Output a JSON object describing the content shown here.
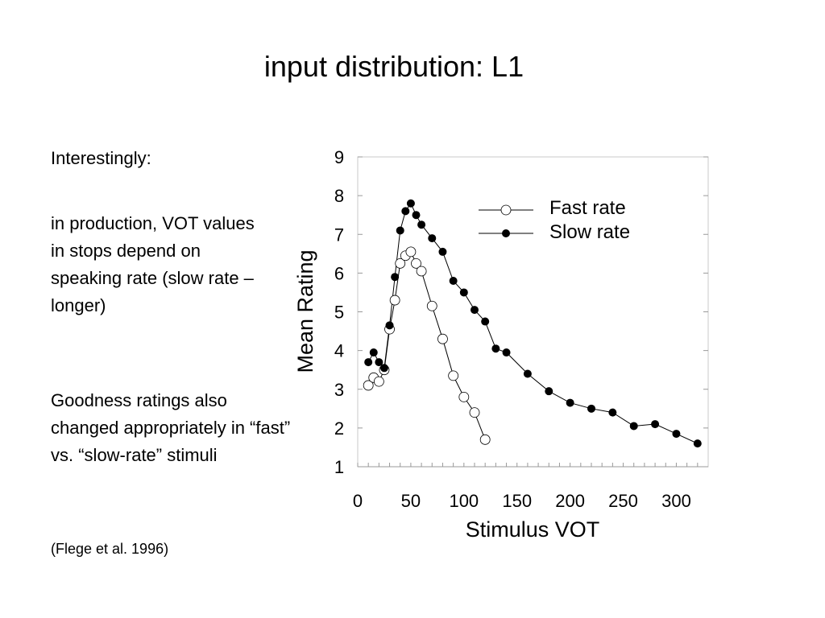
{
  "slide": {
    "title": "input distribution: L1",
    "bullets": [
      "Interestingly:",
      "in production, VOT values in stops depend on speaking rate (slow rate – longer)",
      "Goodness ratings also changed appropriately in “fast” vs. “slow-rate” stimuli"
    ],
    "citation": "(Flege et al. 1996)"
  },
  "chart_data": {
    "type": "line",
    "title": "",
    "xlabel": "Stimulus VOT",
    "ylabel": "Mean Rating",
    "xlim": [
      0,
      330
    ],
    "ylim": [
      1,
      9
    ],
    "xticks": [
      0,
      50,
      100,
      150,
      200,
      250,
      300
    ],
    "yticks": [
      1,
      2,
      3,
      4,
      5,
      6,
      7,
      8,
      9
    ],
    "grid": false,
    "legend": "top-right",
    "series": [
      {
        "name": "Fast rate",
        "marker": "open-circle",
        "x": [
          10,
          15,
          20,
          25,
          30,
          35,
          40,
          45,
          50,
          55,
          60,
          70,
          80,
          90,
          100,
          110,
          120
        ],
        "y": [
          3.1,
          3.3,
          3.2,
          3.5,
          4.55,
          5.3,
          6.25,
          6.45,
          6.55,
          6.25,
          6.05,
          5.15,
          4.3,
          3.35,
          2.8,
          2.4,
          1.7
        ]
      },
      {
        "name": "Slow rate",
        "marker": "filled-circle",
        "x": [
          10,
          15,
          20,
          25,
          30,
          35,
          40,
          45,
          50,
          55,
          60,
          70,
          80,
          90,
          100,
          110,
          120,
          130,
          140,
          160,
          180,
          200,
          220,
          240,
          260,
          280,
          300,
          320
        ],
        "y": [
          3.7,
          3.95,
          3.7,
          3.55,
          4.65,
          5.9,
          7.1,
          7.6,
          7.8,
          7.5,
          7.25,
          6.9,
          6.55,
          5.8,
          5.5,
          5.05,
          4.75,
          4.05,
          3.95,
          3.4,
          2.95,
          2.65,
          2.5,
          2.4,
          2.05,
          2.1,
          1.85,
          1.6
        ]
      }
    ]
  }
}
